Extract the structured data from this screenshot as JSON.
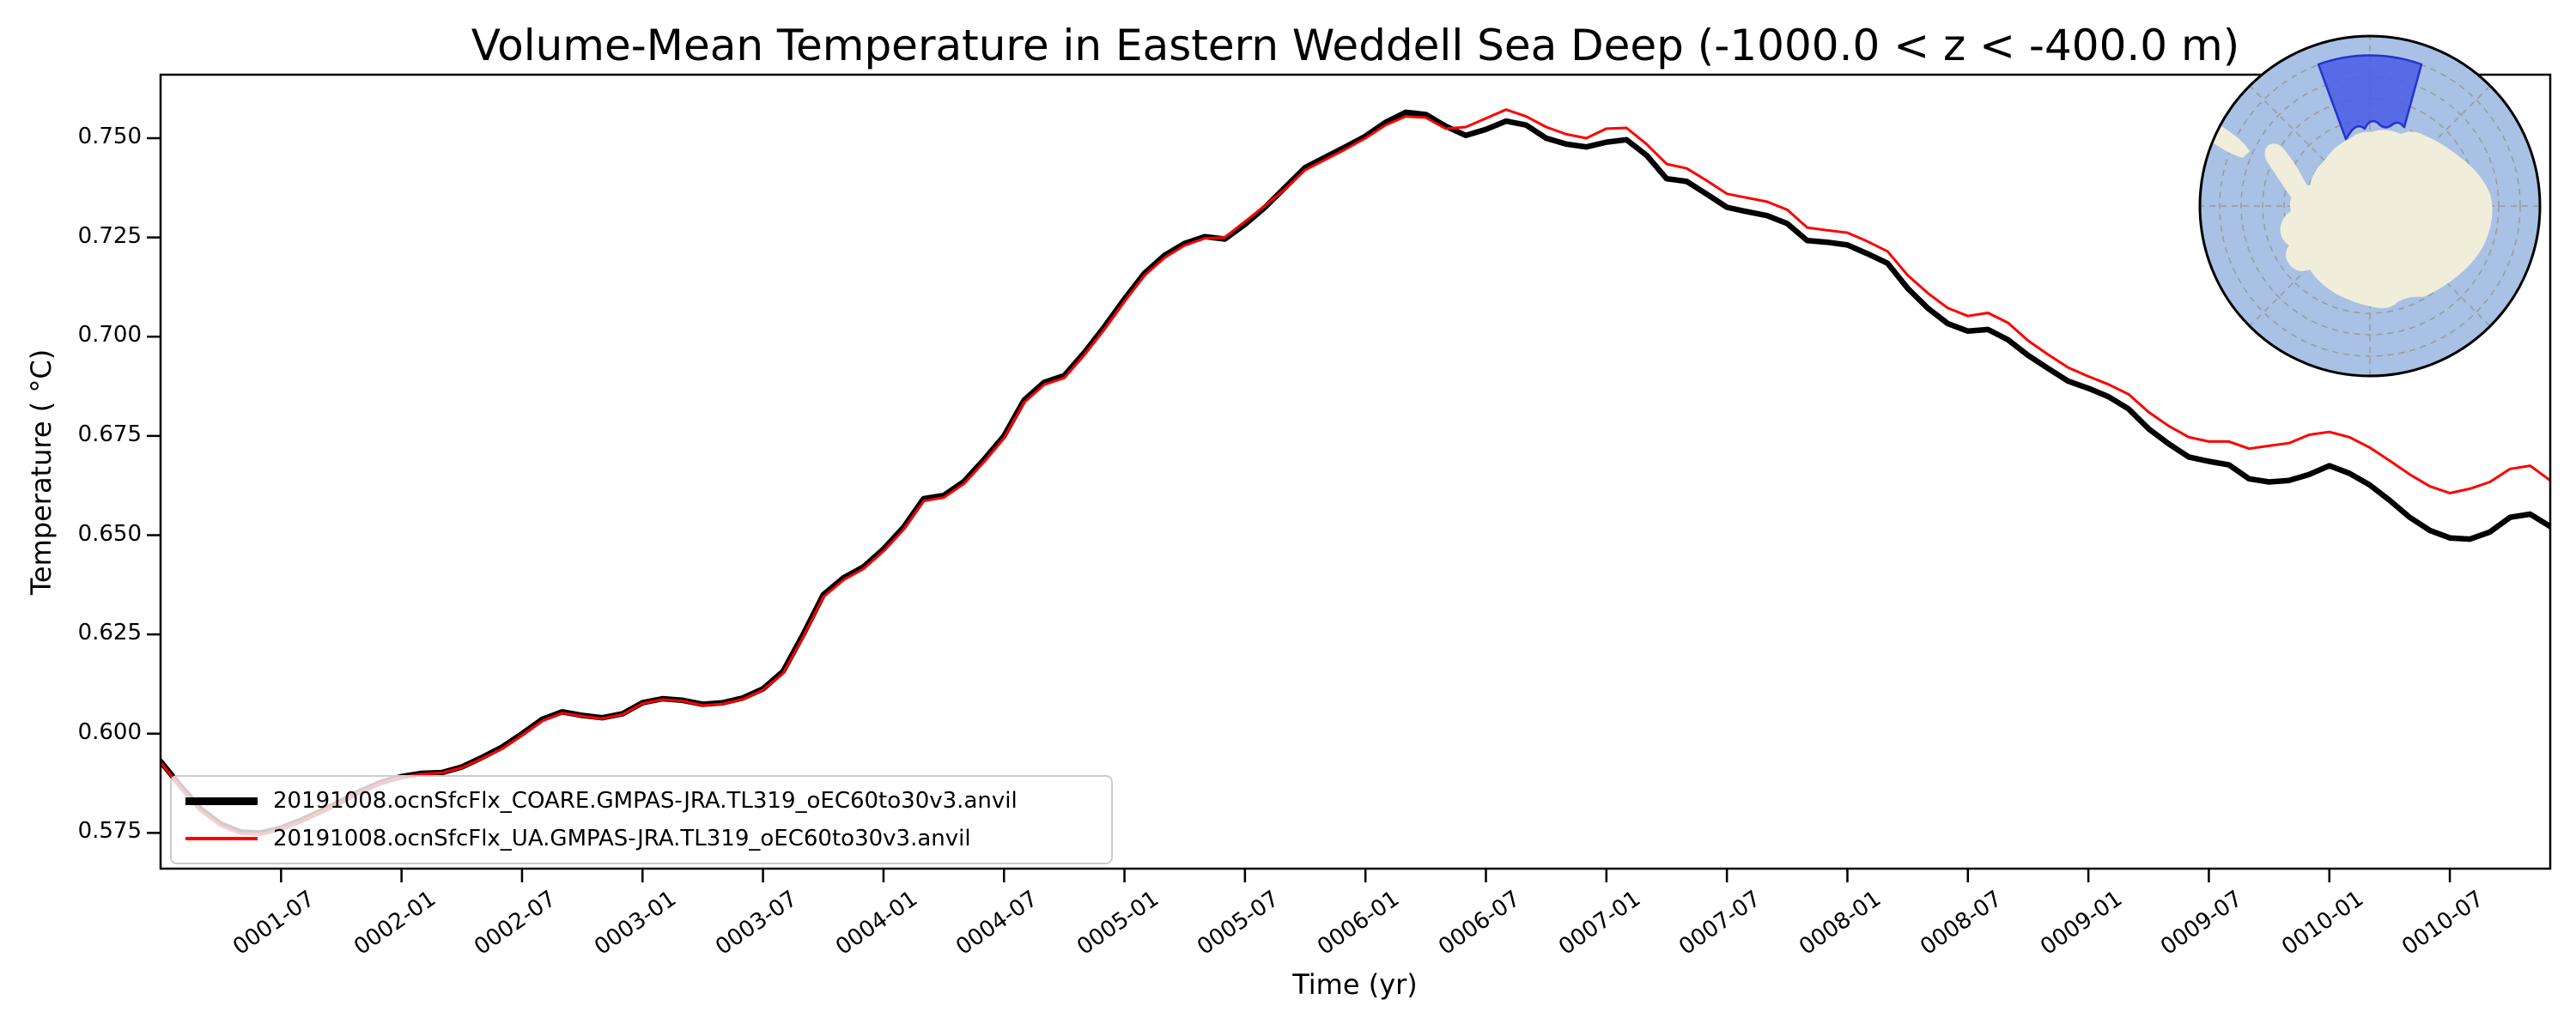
{
  "chart_data": {
    "type": "line",
    "title": "Volume-Mean Temperature in Eastern Weddell Sea Deep (-1000.0 < z < -400.0 m)",
    "xlabel": "Time (yr)",
    "ylabel": "Temperature ( °C)",
    "x_start_date": "0001-01",
    "x_step": "1 month",
    "xlim_months": 120,
    "ylim": [
      0.566,
      0.766
    ],
    "grid": false,
    "legend_position": "lower-left",
    "y_ticks": [
      {
        "value": 0.575,
        "label": "0.575"
      },
      {
        "value": 0.6,
        "label": "0.600"
      },
      {
        "value": 0.625,
        "label": "0.625"
      },
      {
        "value": 0.65,
        "label": "0.650"
      },
      {
        "value": 0.675,
        "label": "0.675"
      },
      {
        "value": 0.7,
        "label": "0.700"
      },
      {
        "value": 0.725,
        "label": "0.725"
      },
      {
        "value": 0.75,
        "label": "0.750"
      }
    ],
    "x_tick_labels": [
      "0001-07",
      "0002-01",
      "0002-07",
      "0003-01",
      "0003-07",
      "0004-01",
      "0004-07",
      "0005-01",
      "0005-07",
      "0006-01",
      "0006-07",
      "0007-01",
      "0007-07",
      "0008-01",
      "0008-07",
      "0009-01",
      "0009-07",
      "0010-01",
      "0010-07"
    ],
    "series": [
      {
        "name": "20191008.ocnSfcFlx_COARE.GMPAS-JRA.TL319_oEC60to30v3.anvil",
        "color": "#000000",
        "linewidth": 6.5,
        "values": [
          0.593,
          0.5868,
          0.581,
          0.5772,
          0.5752,
          0.575,
          0.5762,
          0.5782,
          0.5805,
          0.583,
          0.5856,
          0.5878,
          0.5892,
          0.59,
          0.5902,
          0.5916,
          0.594,
          0.5966,
          0.6,
          0.6036,
          0.6055,
          0.6046,
          0.604,
          0.605,
          0.6078,
          0.6088,
          0.6084,
          0.6074,
          0.6078,
          0.609,
          0.6113,
          0.6157,
          0.625,
          0.635,
          0.6392,
          0.642,
          0.6465,
          0.652,
          0.6592,
          0.66,
          0.6635,
          0.669,
          0.675,
          0.684,
          0.6885,
          0.6902,
          0.696,
          0.7025,
          0.7095,
          0.716,
          0.7205,
          0.7235,
          0.7252,
          0.7246,
          0.7283,
          0.7326,
          0.7376,
          0.7426,
          0.7452,
          0.7478,
          0.7505,
          0.754,
          0.7565,
          0.756,
          0.753,
          0.7507,
          0.7522,
          0.7543,
          0.7533,
          0.75,
          0.7485,
          0.7478,
          0.749,
          0.7496,
          0.7457,
          0.7398,
          0.7391,
          0.7359,
          0.7326,
          0.7315,
          0.7305,
          0.7285,
          0.7242,
          0.7238,
          0.7231,
          0.7209,
          0.7185,
          0.7122,
          0.7072,
          0.7033,
          0.7014,
          0.7018,
          0.6992,
          0.6953,
          0.692,
          0.6888,
          0.687,
          0.6849,
          0.6818,
          0.6768,
          0.673,
          0.6697,
          0.6686,
          0.6677,
          0.6642,
          0.6634,
          0.6638,
          0.6653,
          0.6675,
          0.6656,
          0.6627,
          0.6588,
          0.6545,
          0.6512,
          0.6493,
          0.649,
          0.6508,
          0.6545,
          0.6553,
          0.6522
        ]
      },
      {
        "name": "20191008.ocnSfcFlx_UA.GMPAS-JRA.TL319_oEC60to30v3.anvil",
        "color": "#ff0000",
        "linewidth": 3,
        "values": [
          0.5928,
          0.5864,
          0.5806,
          0.5768,
          0.5748,
          0.5747,
          0.576,
          0.578,
          0.5803,
          0.5828,
          0.5854,
          0.5876,
          0.589,
          0.5898,
          0.5901,
          0.5914,
          0.5937,
          0.5962,
          0.5996,
          0.6032,
          0.6052,
          0.6044,
          0.6038,
          0.6048,
          0.6076,
          0.6086,
          0.6082,
          0.6071,
          0.6075,
          0.6087,
          0.611,
          0.6152,
          0.6244,
          0.6344,
          0.6387,
          0.6415,
          0.646,
          0.6514,
          0.6586,
          0.6595,
          0.6629,
          0.6684,
          0.6744,
          0.6834,
          0.6879,
          0.6896,
          0.6954,
          0.7019,
          0.7089,
          0.7154,
          0.7199,
          0.723,
          0.7248,
          0.725,
          0.729,
          0.733,
          0.7372,
          0.742,
          0.7446,
          0.7472,
          0.75,
          0.7533,
          0.7555,
          0.7552,
          0.7524,
          0.7528,
          0.755,
          0.7572,
          0.7555,
          0.7528,
          0.751,
          0.75,
          0.7524,
          0.7526,
          0.7485,
          0.7435,
          0.7424,
          0.7393,
          0.736,
          0.735,
          0.734,
          0.732,
          0.7275,
          0.7268,
          0.7262,
          0.724,
          0.7215,
          0.7155,
          0.711,
          0.7072,
          0.7052,
          0.706,
          0.7035,
          0.699,
          0.6955,
          0.6922,
          0.69,
          0.688,
          0.6855,
          0.681,
          0.6775,
          0.6747,
          0.6736,
          0.6736,
          0.6718,
          0.6725,
          0.6732,
          0.6753,
          0.676,
          0.6747,
          0.6721,
          0.6688,
          0.6653,
          0.6623,
          0.6606,
          0.6617,
          0.6634,
          0.6667,
          0.6675,
          0.6638
        ]
      }
    ],
    "inset_map": {
      "type": "south-polar-stereographic",
      "highlight_region": "Eastern Weddell Sea",
      "ocean_color": "#a8c1e5",
      "land_color": "#f0edda",
      "highlight_fill": "#4a5ce6",
      "highlight_edge": "#2433cc",
      "graticule_color": "#9a9a96",
      "border_color": "#000000"
    },
    "frame_color": "#000000",
    "legend_border_color": "#cccccc"
  }
}
